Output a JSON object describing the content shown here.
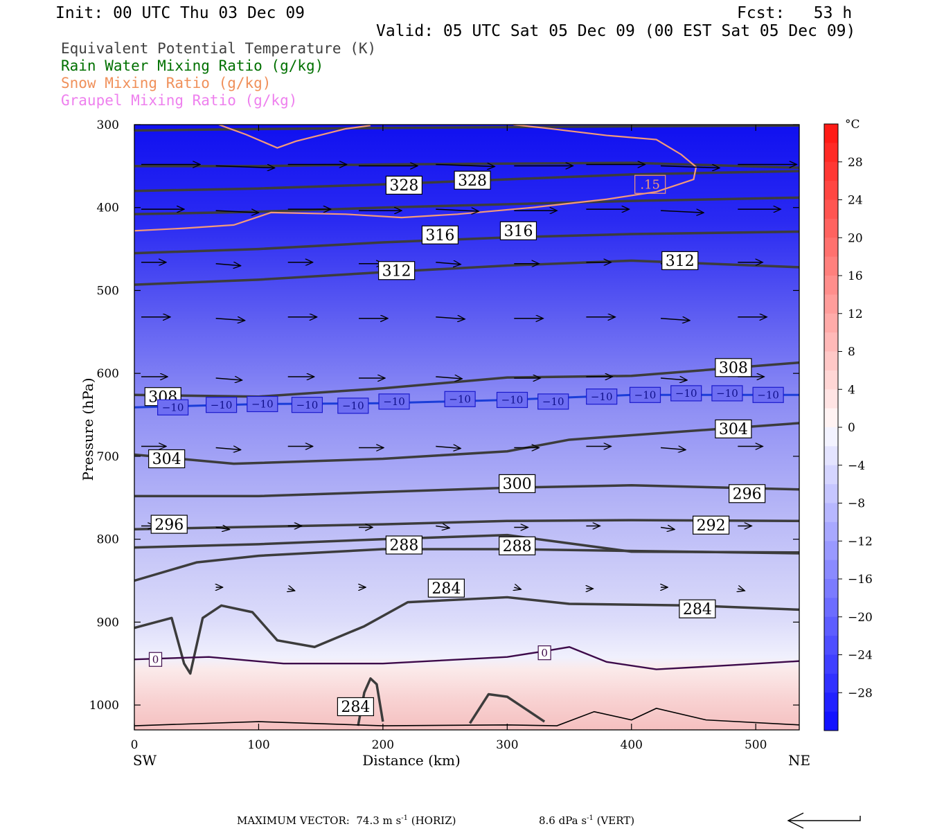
{
  "header": {
    "init": "Init: 00 UTC Thu 03 Dec 09",
    "fcst": "Fcst:   53 h",
    "valid": "Valid: 05 UTC Sat 05 Dec 09 (00 EST Sat 05 Dec 09)"
  },
  "legend": [
    {
      "text": "Equivalent Potential Temperature (K)",
      "color": "#404040"
    },
    {
      "text": "Rain Water Mixing Ratio (g/kg)",
      "color": "#007000"
    },
    {
      "text": "Snow Mixing Ratio (g/kg)",
      "color": "#f0905a"
    },
    {
      "text": "Graupel Mixing Ratio (g/kg)",
      "color": "#ee80ee"
    }
  ],
  "chart_data": {
    "type": "cross-section",
    "xlabel": "Distance (km)",
    "ylabel": "Pressure (hPa)",
    "xlim": [
      0,
      535
    ],
    "ylim": [
      1030,
      300
    ],
    "x_ticks": [
      0,
      100,
      200,
      300,
      400,
      500
    ],
    "y_ticks": [
      300,
      400,
      500,
      600,
      700,
      800,
      900,
      1000
    ],
    "x_end_labels": {
      "left": "SW",
      "right": "NE"
    },
    "colorbar": {
      "unit": "°C",
      "ticks": [
        28,
        24,
        20,
        16,
        12,
        8,
        4,
        0,
        -4,
        -8,
        -12,
        -16,
        -20,
        -24,
        -28
      ],
      "range": [
        -32,
        32
      ]
    },
    "theta_e_labels": [
      {
        "value": "328",
        "x": 217,
        "p": 373
      },
      {
        "value": "328",
        "x": 272,
        "p": 367
      },
      {
        "value": "316",
        "x": 246,
        "p": 433
      },
      {
        "value": "316",
        "x": 309,
        "p": 428
      },
      {
        "value": "312",
        "x": 211,
        "p": 476
      },
      {
        "value": "312",
        "x": 439,
        "p": 464
      },
      {
        "value": "308",
        "x": 482,
        "p": 593
      },
      {
        "value": "308",
        "x": 23,
        "p": 628
      },
      {
        "value": "304",
        "x": 482,
        "p": 667
      },
      {
        "value": "304",
        "x": 26,
        "p": 703
      },
      {
        "value": "300",
        "x": 308,
        "p": 733
      },
      {
        "value": "296",
        "x": 493,
        "p": 745
      },
      {
        "value": "296",
        "x": 28,
        "p": 782
      },
      {
        "value": "292",
        "x": 464,
        "p": 783
      },
      {
        "value": "288",
        "x": 217,
        "p": 807
      },
      {
        "value": "288",
        "x": 308,
        "p": 808
      },
      {
        "value": "284",
        "x": 251,
        "p": 859
      },
      {
        "value": "284",
        "x": 453,
        "p": 884
      },
      {
        "value": "284",
        "x": 178,
        "p": 1002
      }
    ],
    "temp_contour_labels": [
      {
        "value": "−10",
        "x": 31,
        "p": 641
      },
      {
        "value": "−10",
        "x": 70,
        "p": 638
      },
      {
        "value": "−10",
        "x": 103,
        "p": 637
      },
      {
        "value": "−10",
        "x": 139,
        "p": 638
      },
      {
        "value": "−10",
        "x": 176,
        "p": 639
      },
      {
        "value": "−10",
        "x": 209,
        "p": 634
      },
      {
        "value": "−10",
        "x": 262,
        "p": 631
      },
      {
        "value": "−10",
        "x": 304,
        "p": 632
      },
      {
        "value": "−10",
        "x": 337,
        "p": 634
      },
      {
        "value": "−10",
        "x": 376,
        "p": 628
      },
      {
        "value": "−10",
        "x": 411,
        "p": 626
      },
      {
        "value": "−10",
        "x": 444,
        "p": 624
      },
      {
        "value": "−10",
        "x": 477,
        "p": 624
      },
      {
        "value": "−10",
        "x": 510,
        "p": 626
      },
      {
        "value": "0",
        "x": 17,
        "p": 945
      },
      {
        "value": "0",
        "x": 330,
        "p": 937
      }
    ],
    "snow_label": {
      "value": ".15",
      "x": 415,
      "p": 372
    },
    "colors": {
      "theta_e": "#3c3c3c",
      "minus10": "#1a3dd8",
      "zero": "#3d0a4a",
      "snow": "#f39a7a",
      "arrows": "#000000"
    }
  },
  "footer": {
    "max_vector": "MAXIMUM VECTOR:  74.3 m s",
    "horiz_exp": "-1",
    "horiz": " (HORIZ)",
    "vert_val": "8.6 dPa s",
    "vert_exp": "-1",
    "vert": " (VERT)"
  }
}
